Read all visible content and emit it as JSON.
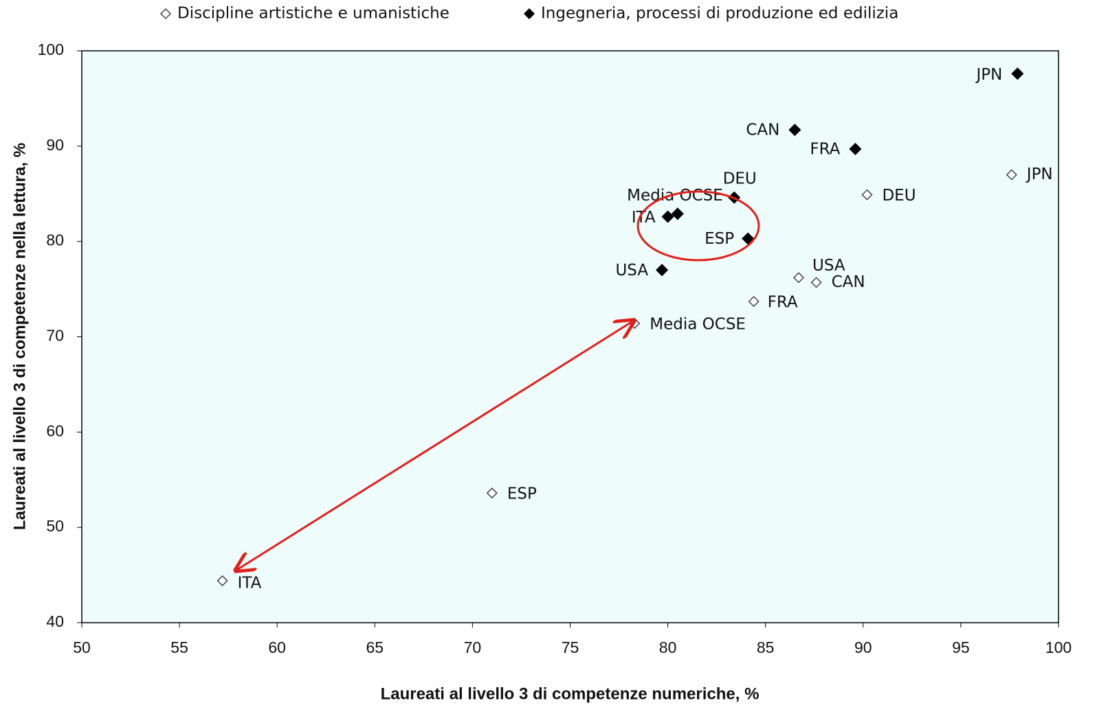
{
  "chart_data": {
    "type": "scatter",
    "xlabel": "Laureati al livello 3 di competenze numeriche, %",
    "ylabel": "Laureati al livello 3 di competenze nella lettura, %",
    "xlim": [
      50,
      100
    ],
    "xticks": [
      50,
      55,
      60,
      65,
      70,
      75,
      80,
      85,
      90,
      95,
      100
    ],
    "ylim": [
      40,
      100
    ],
    "yticks": [
      40,
      50,
      60,
      70,
      80,
      90,
      100
    ],
    "background": "#effcfc",
    "series": [
      {
        "name": "Discipline artistiche e umanistiche",
        "color": "#444444",
        "filled": false,
        "labels": [
          "JPN",
          "DEU",
          "USA",
          "CAN",
          "FRA",
          "Media OCSE",
          "ESP",
          "ITA"
        ],
        "x": [
          97.6,
          90.2,
          86.7,
          87.6,
          84.4,
          78.3,
          71.0,
          57.2
        ],
        "values": [
          87.0,
          84.9,
          76.2,
          75.7,
          73.7,
          71.4,
          53.6,
          44.4
        ]
      },
      {
        "name": "Ingegneria, processi di produzione ed edilizia",
        "color": "#000000",
        "filled": true,
        "labels": [
          "JPN",
          "CAN",
          "FRA",
          "DEU",
          "Media OCSE",
          "ITA",
          "ESP",
          "USA"
        ],
        "x": [
          97.9,
          86.5,
          89.6,
          83.4,
          80.5,
          80.0,
          84.1,
          79.7
        ],
        "values": [
          97.6,
          91.7,
          89.7,
          84.6,
          82.9,
          82.6,
          80.3,
          77.0
        ]
      }
    ]
  }
}
